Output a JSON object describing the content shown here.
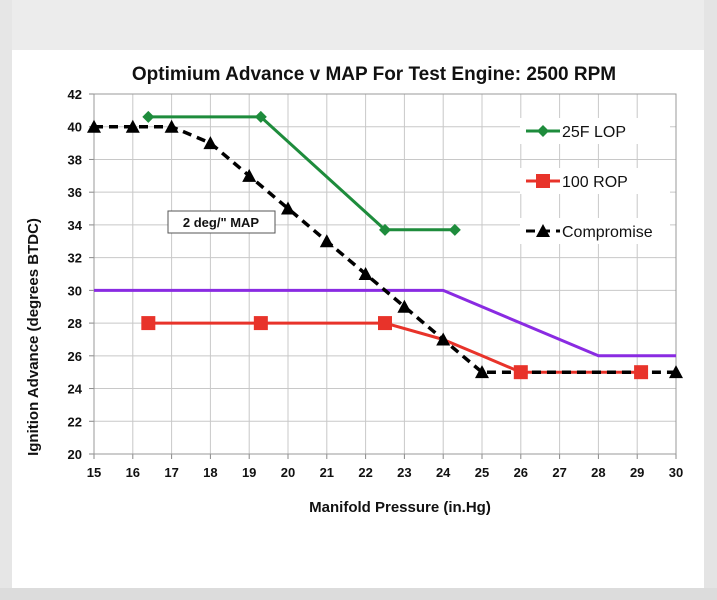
{
  "chart_data": {
    "type": "line",
    "title": "Optimium Advance v MAP For Test Engine: 2500 RPM",
    "xlabel": "Manifold Pressure (in.Hg)",
    "ylabel": "Ignition Advance (degrees BTDC)",
    "xlim": [
      15,
      30
    ],
    "ylim": [
      20,
      42
    ],
    "x_ticks": [
      "15",
      "16",
      "17",
      "18",
      "19",
      "20",
      "21",
      "22",
      "23",
      "24",
      "25",
      "26",
      "27",
      "28",
      "29",
      "30"
    ],
    "y_ticks": [
      "20",
      "22",
      "24",
      "26",
      "28",
      "30",
      "32",
      "34",
      "36",
      "38",
      "40",
      "42"
    ],
    "grid": true,
    "legend_position": "top-right",
    "annotation": "2 deg/\" MAP",
    "series": [
      {
        "name": "25F LOP",
        "color": "#1e8c3c",
        "marker": "diamond",
        "dash": false,
        "legend": true,
        "points": [
          [
            16.4,
            40.6
          ],
          [
            19.3,
            40.6
          ],
          [
            22.5,
            33.7
          ],
          [
            24.3,
            33.7
          ]
        ]
      },
      {
        "name": "100 ROP",
        "color": "#e8332a",
        "marker": "square",
        "dash": false,
        "legend": true,
        "points": [
          [
            16.4,
            28
          ],
          [
            19.3,
            28
          ],
          [
            22.5,
            28
          ],
          [
            24.0,
            27
          ],
          [
            25.0,
            26
          ],
          [
            26.0,
            25
          ],
          [
            29.1,
            25
          ]
        ]
      },
      {
        "name": "Compromise",
        "color": "#000000",
        "marker": "triangle",
        "dash": true,
        "legend": true,
        "points": [
          [
            15,
            40
          ],
          [
            16,
            40
          ],
          [
            17,
            40
          ],
          [
            18,
            39
          ],
          [
            19,
            37
          ],
          [
            20,
            35
          ],
          [
            21,
            33
          ],
          [
            22,
            31
          ],
          [
            23,
            29
          ],
          [
            24,
            27
          ],
          [
            25,
            25
          ],
          [
            26,
            25
          ],
          [
            27,
            25
          ],
          [
            28,
            25
          ],
          [
            29,
            25
          ],
          [
            30,
            25
          ]
        ]
      },
      {
        "name": "",
        "color": "#8a2be2",
        "marker": "none",
        "dash": false,
        "legend": false,
        "points": [
          [
            15,
            30
          ],
          [
            24,
            30
          ],
          [
            28,
            26
          ],
          [
            30,
            26
          ]
        ]
      }
    ],
    "marker_points": {
      "25F LOP": [
        [
          16.4,
          40.6
        ],
        [
          19.3,
          40.6
        ],
        [
          22.5,
          33.7
        ],
        [
          24.3,
          33.7
        ]
      ],
      "100 ROP": [
        [
          16.4,
          28
        ],
        [
          19.3,
          28
        ],
        [
          22.5,
          28
        ],
        [
          26.0,
          25
        ],
        [
          29.1,
          25
        ]
      ],
      "Compromise": [
        [
          15,
          40
        ],
        [
          16,
          40
        ],
        [
          17,
          40
        ],
        [
          18,
          39
        ],
        [
          19,
          37
        ],
        [
          20,
          35
        ],
        [
          21,
          33
        ],
        [
          22,
          31
        ],
        [
          23,
          29
        ],
        [
          24,
          27
        ],
        [
          25,
          25
        ],
        [
          30,
          25
        ]
      ]
    }
  }
}
